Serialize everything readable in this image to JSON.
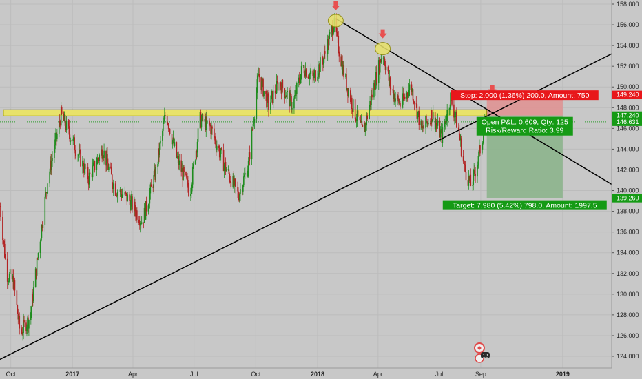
{
  "chart_data": {
    "type": "candlestick",
    "y_range": [
      123.2,
      158.6
    ],
    "y_ticks": [
      "124.000",
      "126.000",
      "128.000",
      "130.000",
      "132.000",
      "134.000",
      "136.000",
      "138.000",
      "140.000",
      "142.000",
      "144.000",
      "146.000",
      "148.000",
      "150.000",
      "152.000",
      "154.000",
      "156.000",
      "158.000"
    ],
    "x_ticks": [
      "Oct",
      "2017",
      "Apr",
      "Jul",
      "Oct",
      "2018",
      "Apr",
      "Jul",
      "Sep",
      "2019"
    ],
    "x_range": [
      "2016-09-15",
      "2019-03-15"
    ],
    "last_price": 146.631,
    "price_key_points": [
      {
        "date": "2016-09-15",
        "price": 138.5
      },
      {
        "date": "2016-09-25",
        "price": 132.0
      },
      {
        "date": "2016-10-05",
        "price": 131.2
      },
      {
        "date": "2016-10-15",
        "price": 126.2
      },
      {
        "date": "2016-10-30",
        "price": 127.8
      },
      {
        "date": "2016-11-10",
        "price": 133.5
      },
      {
        "date": "2016-11-25",
        "price": 141.0
      },
      {
        "date": "2016-12-15",
        "price": 147.3
      },
      {
        "date": "2017-01-05",
        "price": 144.2
      },
      {
        "date": "2017-01-25",
        "price": 141.2
      },
      {
        "date": "2017-02-15",
        "price": 144.0
      },
      {
        "date": "2017-03-05",
        "price": 140.2
      },
      {
        "date": "2017-03-25",
        "price": 139.2
      },
      {
        "date": "2017-04-15",
        "price": 137.0
      },
      {
        "date": "2017-05-05",
        "price": 141.8
      },
      {
        "date": "2017-05-20",
        "price": 147.6
      },
      {
        "date": "2017-06-05",
        "price": 143.2
      },
      {
        "date": "2017-06-25",
        "price": 139.8
      },
      {
        "date": "2017-07-10",
        "price": 146.8
      },
      {
        "date": "2017-07-25",
        "price": 146.2
      },
      {
        "date": "2017-08-15",
        "price": 142.5
      },
      {
        "date": "2017-09-05",
        "price": 139.5
      },
      {
        "date": "2017-09-20",
        "price": 142.5
      },
      {
        "date": "2017-10-05",
        "price": 151.2
      },
      {
        "date": "2017-10-20",
        "price": 148.2
      },
      {
        "date": "2017-11-05",
        "price": 150.5
      },
      {
        "date": "2017-11-25",
        "price": 148.2
      },
      {
        "date": "2017-12-10",
        "price": 152.0
      },
      {
        "date": "2017-12-25",
        "price": 150.8
      },
      {
        "date": "2018-01-10",
        "price": 152.8
      },
      {
        "date": "2018-01-25",
        "price": 156.2
      },
      {
        "date": "2018-02-10",
        "price": 151.0
      },
      {
        "date": "2018-02-25",
        "price": 147.6
      },
      {
        "date": "2018-03-10",
        "price": 145.5
      },
      {
        "date": "2018-03-25",
        "price": 149.8
      },
      {
        "date": "2018-04-08",
        "price": 153.5
      },
      {
        "date": "2018-04-20",
        "price": 149.8
      },
      {
        "date": "2018-05-05",
        "price": 148.2
      },
      {
        "date": "2018-05-20",
        "price": 150.2
      },
      {
        "date": "2018-06-05",
        "price": 145.8
      },
      {
        "date": "2018-06-20",
        "price": 147.4
      },
      {
        "date": "2018-07-05",
        "price": 145.2
      },
      {
        "date": "2018-07-18",
        "price": 149.0
      },
      {
        "date": "2018-07-30",
        "price": 145.8
      },
      {
        "date": "2018-08-08",
        "price": 142.0
      },
      {
        "date": "2018-08-18",
        "price": 140.4
      },
      {
        "date": "2018-08-28",
        "price": 143.0
      },
      {
        "date": "2018-09-08",
        "price": 146.6
      }
    ],
    "support_zone": {
      "from": "2016-09-20",
      "to": "2018-09-10",
      "low": 147.2,
      "high": 147.8
    },
    "trendlines": [
      {
        "name": "ascending",
        "from": {
          "date": "2016-09-15",
          "price": 123.7
        },
        "to": {
          "date": "2019-03-15",
          "price": 153.2
        }
      },
      {
        "name": "descending",
        "from": {
          "date": "2018-01-28",
          "price": 156.6
        },
        "to": {
          "date": "2019-03-15",
          "price": 140.6
        }
      }
    ],
    "highlighted_peaks": [
      {
        "date": "2018-01-28",
        "price": 156.4
      },
      {
        "date": "2018-04-08",
        "price": 153.7
      }
    ],
    "position": {
      "from": "2018-09-10",
      "to": "2019-01-01",
      "entry": 147.24,
      "stop": 149.24,
      "target": 139.26,
      "current": 146.631
    },
    "price_tags": {
      "stop": "149.240",
      "entry": "147.240",
      "current": "146.631",
      "target": "139.260"
    },
    "labels": {
      "stop": "Stop: 2.000 (1.36%) 200.0, Amount: 750",
      "open_pl": "Open P&L: 0.609, Qty: 125",
      "risk_reward": "Risk/Reward Ratio: 3.99",
      "target": "Target: 7.980 (5.42%) 798.0, Amount: 1997.5"
    },
    "event_badge": "12",
    "colors": {
      "background": "#c8c8c8",
      "up_candle": "#1e8c1e",
      "down_candle": "#b22222",
      "stop_fill": "#e09090",
      "target_fill": "#8cb48c",
      "stop_box": "#e8171b",
      "target_box": "#159a15",
      "zone_fill": "#e8e26a",
      "zone_border": "#8a8600",
      "peak_marker": "#e8e26a",
      "arrow": "#e85050",
      "trendline": "#000000",
      "current_line": "#2a9a2a"
    }
  }
}
